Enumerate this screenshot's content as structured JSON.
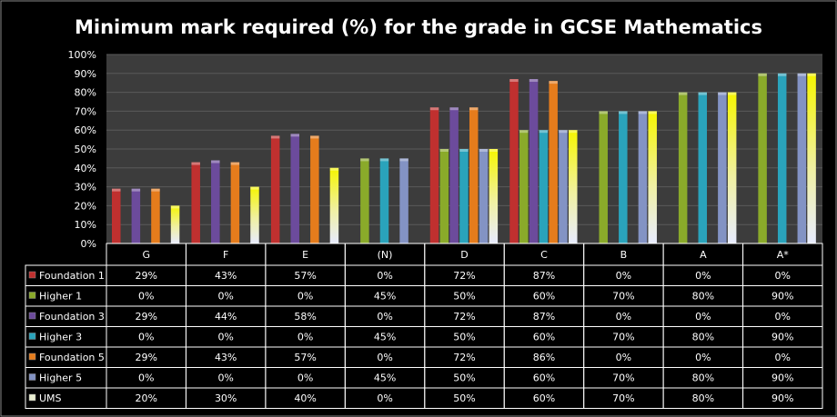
{
  "chart_data": {
    "type": "bar",
    "title": "Minimum mark required (%) for the grade in GCSE Mathematics",
    "categories": [
      "G",
      "F",
      "E",
      "(N)",
      "D",
      "C",
      "B",
      "A",
      "A*"
    ],
    "ylim": [
      0,
      100
    ],
    "yticks": [
      "0%",
      "10%",
      "20%",
      "30%",
      "40%",
      "50%",
      "60%",
      "70%",
      "80%",
      "90%",
      "100%"
    ],
    "grid": true,
    "legend": "data-table",
    "series": [
      {
        "name": "Foundation 1",
        "color": "#c0302f",
        "values": [
          29,
          43,
          57,
          0,
          72,
          87,
          0,
          0,
          0
        ]
      },
      {
        "name": "Higher 1",
        "color": "#8aaa2a",
        "values": [
          0,
          0,
          0,
          45,
          50,
          60,
          70,
          80,
          90
        ]
      },
      {
        "name": "Foundation 3",
        "color": "#6c4b9c",
        "values": [
          29,
          44,
          58,
          0,
          72,
          87,
          0,
          0,
          0
        ]
      },
      {
        "name": "Higher 3",
        "color": "#2aa3bb",
        "values": [
          0,
          0,
          0,
          45,
          50,
          60,
          70,
          80,
          90
        ]
      },
      {
        "name": "Foundation 5",
        "color": "#e57c1c",
        "values": [
          29,
          43,
          57,
          0,
          72,
          86,
          0,
          0,
          0
        ]
      },
      {
        "name": "Higher 5",
        "color": "#8393c4",
        "values": [
          0,
          0,
          0,
          45,
          50,
          60,
          70,
          80,
          90
        ]
      },
      {
        "name": "UMS",
        "color": "#f5f500",
        "values": [
          20,
          30,
          40,
          0,
          50,
          60,
          70,
          80,
          90
        ]
      }
    ]
  }
}
